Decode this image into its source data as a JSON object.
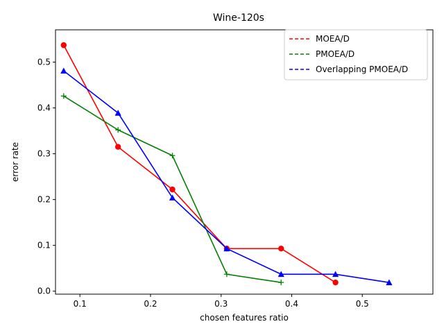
{
  "chart_data": {
    "type": "line",
    "title": "Wine-120s",
    "xlabel": "chosen features ratio",
    "ylabel": "error rate",
    "xlim": [
      0.0654,
      0.6
    ],
    "ylim": [
      -0.0065,
      0.5705
    ],
    "xticks": [
      0.1,
      0.2,
      0.3,
      0.4,
      0.5
    ],
    "yticks": [
      0.0,
      0.1,
      0.2,
      0.3,
      0.4,
      0.5
    ],
    "legend_position": "top-right",
    "grid": false,
    "series": [
      {
        "name": "MOEA/D",
        "color": "#ff0000",
        "marker": "circle",
        "x": [
          0.077,
          0.154,
          0.231,
          0.308,
          0.385,
          0.462
        ],
        "y": [
          0.537,
          0.315,
          0.222,
          0.093,
          0.093,
          0.019
        ]
      },
      {
        "name": "PMOEA/D",
        "color": "#008000",
        "marker": "plus",
        "x": [
          0.077,
          0.154,
          0.231,
          0.308,
          0.385
        ],
        "y": [
          0.426,
          0.352,
          0.296,
          0.037,
          0.019
        ]
      },
      {
        "name": "Overlapping PMOEA/D",
        "color": "#0000ff",
        "marker": "triangle",
        "x": [
          0.077,
          0.154,
          0.231,
          0.308,
          0.385,
          0.462,
          0.538
        ],
        "y": [
          0.481,
          0.389,
          0.204,
          0.093,
          0.037,
          0.037,
          0.019
        ]
      }
    ]
  }
}
